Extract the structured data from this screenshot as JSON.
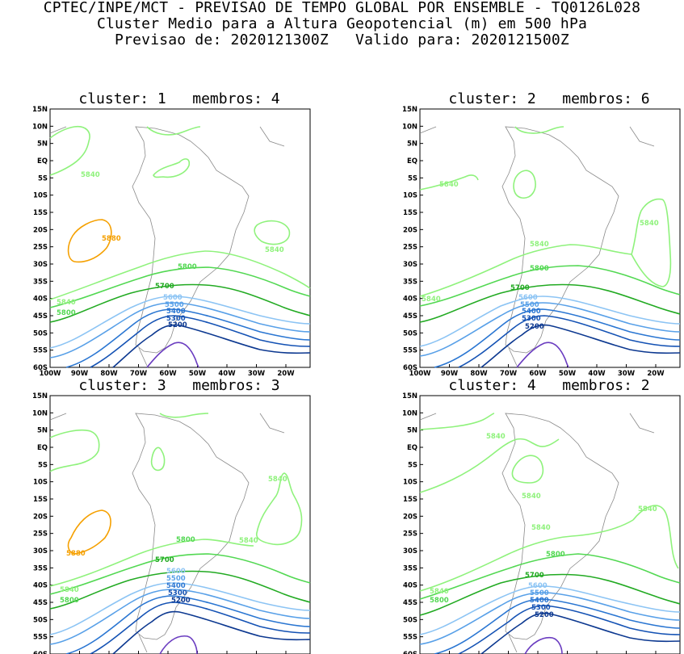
{
  "header": {
    "line1": "CPTEC/INPE/MCT - PREVISAO DE TEMPO GLOBAL POR ENSEMBLE - TQ0126L028",
    "line2": "Cluster Medio para a Altura Geopotencial (m) em 500 hPa",
    "line3": "Previsao de: 2020121300Z   Valido para: 2020121500Z"
  },
  "axes": {
    "lat_labels": [
      "15N",
      "10N",
      "5N",
      "EQ",
      "5S",
      "10S",
      "15S",
      "20S",
      "25S",
      "30S",
      "35S",
      "40S",
      "45S",
      "50S",
      "55S",
      "60S"
    ],
    "lon_labels": [
      "100W",
      "90W",
      "80W",
      "70W",
      "60W",
      "50W",
      "40W",
      "30W",
      "20W"
    ]
  },
  "colors": {
    "c5880": "#f5a000",
    "c5840": "#8ff27c",
    "c5800": "#52d852",
    "c5700": "#22aa22",
    "c5600": "#8cc4f4",
    "c5500": "#58a0e8",
    "c5400": "#2a76d2",
    "c5300": "#1452b4",
    "c5200": "#0c3890",
    "c5100": "#6a3cc0",
    "coast": "#8a8a8a"
  },
  "panels": [
    {
      "title": "cluster: 1   membros: 4",
      "labels": {
        "l5880": "5880",
        "l5840a": "5840",
        "l5840b": "5840",
        "l5840c": "5840",
        "l5800a": "5800",
        "l5800b": "5800",
        "l5700": "5700",
        "l5600": "5600",
        "l5500": "5500",
        "l5400": "5400",
        "l5300": "5300",
        "l5200": "5200"
      }
    },
    {
      "title": "cluster: 2   membros: 6",
      "labels": {
        "l5840a": "5840",
        "l5840b": "5840",
        "l5840c": "5840",
        "l5840d": "5840",
        "l5800": "5800",
        "l5700": "5700",
        "l5600": "5600",
        "l5500": "5500",
        "l5400": "5400",
        "l5300": "5300",
        "l5200": "5200"
      }
    },
    {
      "title": "cluster: 3   membros: 3",
      "labels": {
        "l5880": "5880",
        "l5840a": "5840",
        "l5840b": "5840",
        "l5840c": "5840",
        "l5800a": "5800",
        "l5800b": "5800",
        "l5700": "5700",
        "l5600": "5600",
        "l5500": "5500",
        "l5400": "5400",
        "l5300": "5300",
        "l5200": "5200"
      }
    },
    {
      "title": "cluster: 4   membros: 2",
      "labels": {
        "l5840a": "5840",
        "l5840b": "5840",
        "l5840c": "5840",
        "l5840d": "5840",
        "l5800a": "5800",
        "l5800b": "5800",
        "l5700": "5700",
        "l5600": "5600",
        "l5500": "5500",
        "l5400": "5400",
        "l5300": "5300",
        "l5200": "5200"
      }
    }
  ]
}
